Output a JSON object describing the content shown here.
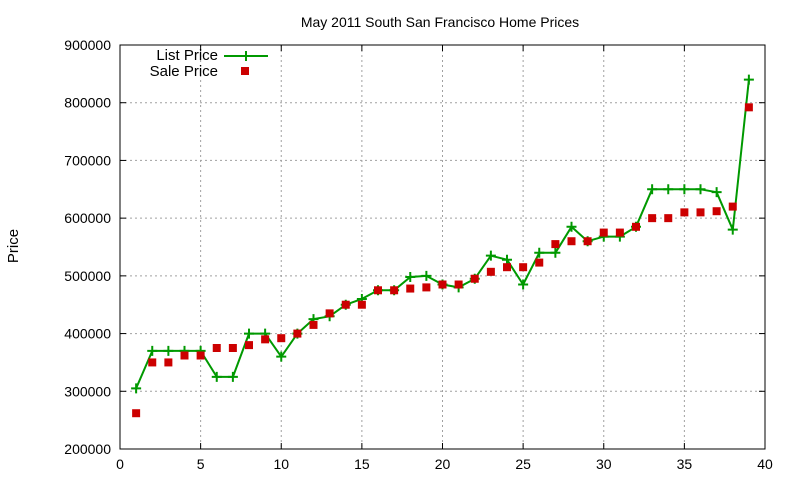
{
  "chart_data": {
    "type": "line",
    "title": "May 2011 South San Francisco Home Prices",
    "xlabel": "",
    "ylabel": "Price",
    "xlim": [
      0,
      40
    ],
    "ylim": [
      200000,
      900000
    ],
    "x_ticks": [
      "0",
      "5",
      "10",
      "15",
      "20",
      "25",
      "30",
      "35",
      "40"
    ],
    "y_ticks": [
      "200000",
      "300000",
      "400000",
      "500000",
      "600000",
      "700000",
      "800000",
      "900000"
    ],
    "grid": true,
    "legend_position": "top-left",
    "series": [
      {
        "name": "List Price",
        "style": "line-with-plus-markers",
        "color": "#009900",
        "x": [
          1,
          2,
          3,
          4,
          5,
          6,
          7,
          8,
          9,
          10,
          11,
          12,
          13,
          14,
          15,
          16,
          17,
          18,
          19,
          20,
          21,
          22,
          23,
          24,
          25,
          26,
          27,
          28,
          29,
          30,
          31,
          32,
          33,
          34,
          35,
          36,
          37,
          38,
          39
        ],
        "values": [
          305000,
          370000,
          370000,
          370000,
          370000,
          325000,
          325000,
          400000,
          400000,
          360000,
          400000,
          425000,
          430000,
          450000,
          460000,
          475000,
          475000,
          498000,
          500000,
          485000,
          480000,
          495000,
          535000,
          528000,
          485000,
          540000,
          540000,
          585000,
          560000,
          568000,
          568000,
          585000,
          650000,
          650000,
          650000,
          650000,
          645000,
          580000,
          840000
        ]
      },
      {
        "name": "Sale Price",
        "style": "square-points",
        "color": "#cc0000",
        "x": [
          1,
          2,
          3,
          4,
          5,
          6,
          7,
          8,
          9,
          10,
          11,
          12,
          13,
          14,
          15,
          16,
          17,
          18,
          19,
          20,
          21,
          22,
          23,
          24,
          25,
          26,
          27,
          28,
          29,
          30,
          31,
          32,
          33,
          34,
          35,
          36,
          37,
          38,
          39
        ],
        "values": [
          262000,
          350000,
          350000,
          362000,
          362000,
          375000,
          375000,
          380000,
          390000,
          392000,
          400000,
          415000,
          435000,
          450000,
          450000,
          475000,
          475000,
          478000,
          480000,
          485000,
          485000,
          495000,
          507000,
          515000,
          515000,
          523000,
          555000,
          560000,
          560000,
          575000,
          575000,
          585000,
          600000,
          600000,
          610000,
          610000,
          612000,
          620000,
          792000
        ]
      }
    ]
  }
}
